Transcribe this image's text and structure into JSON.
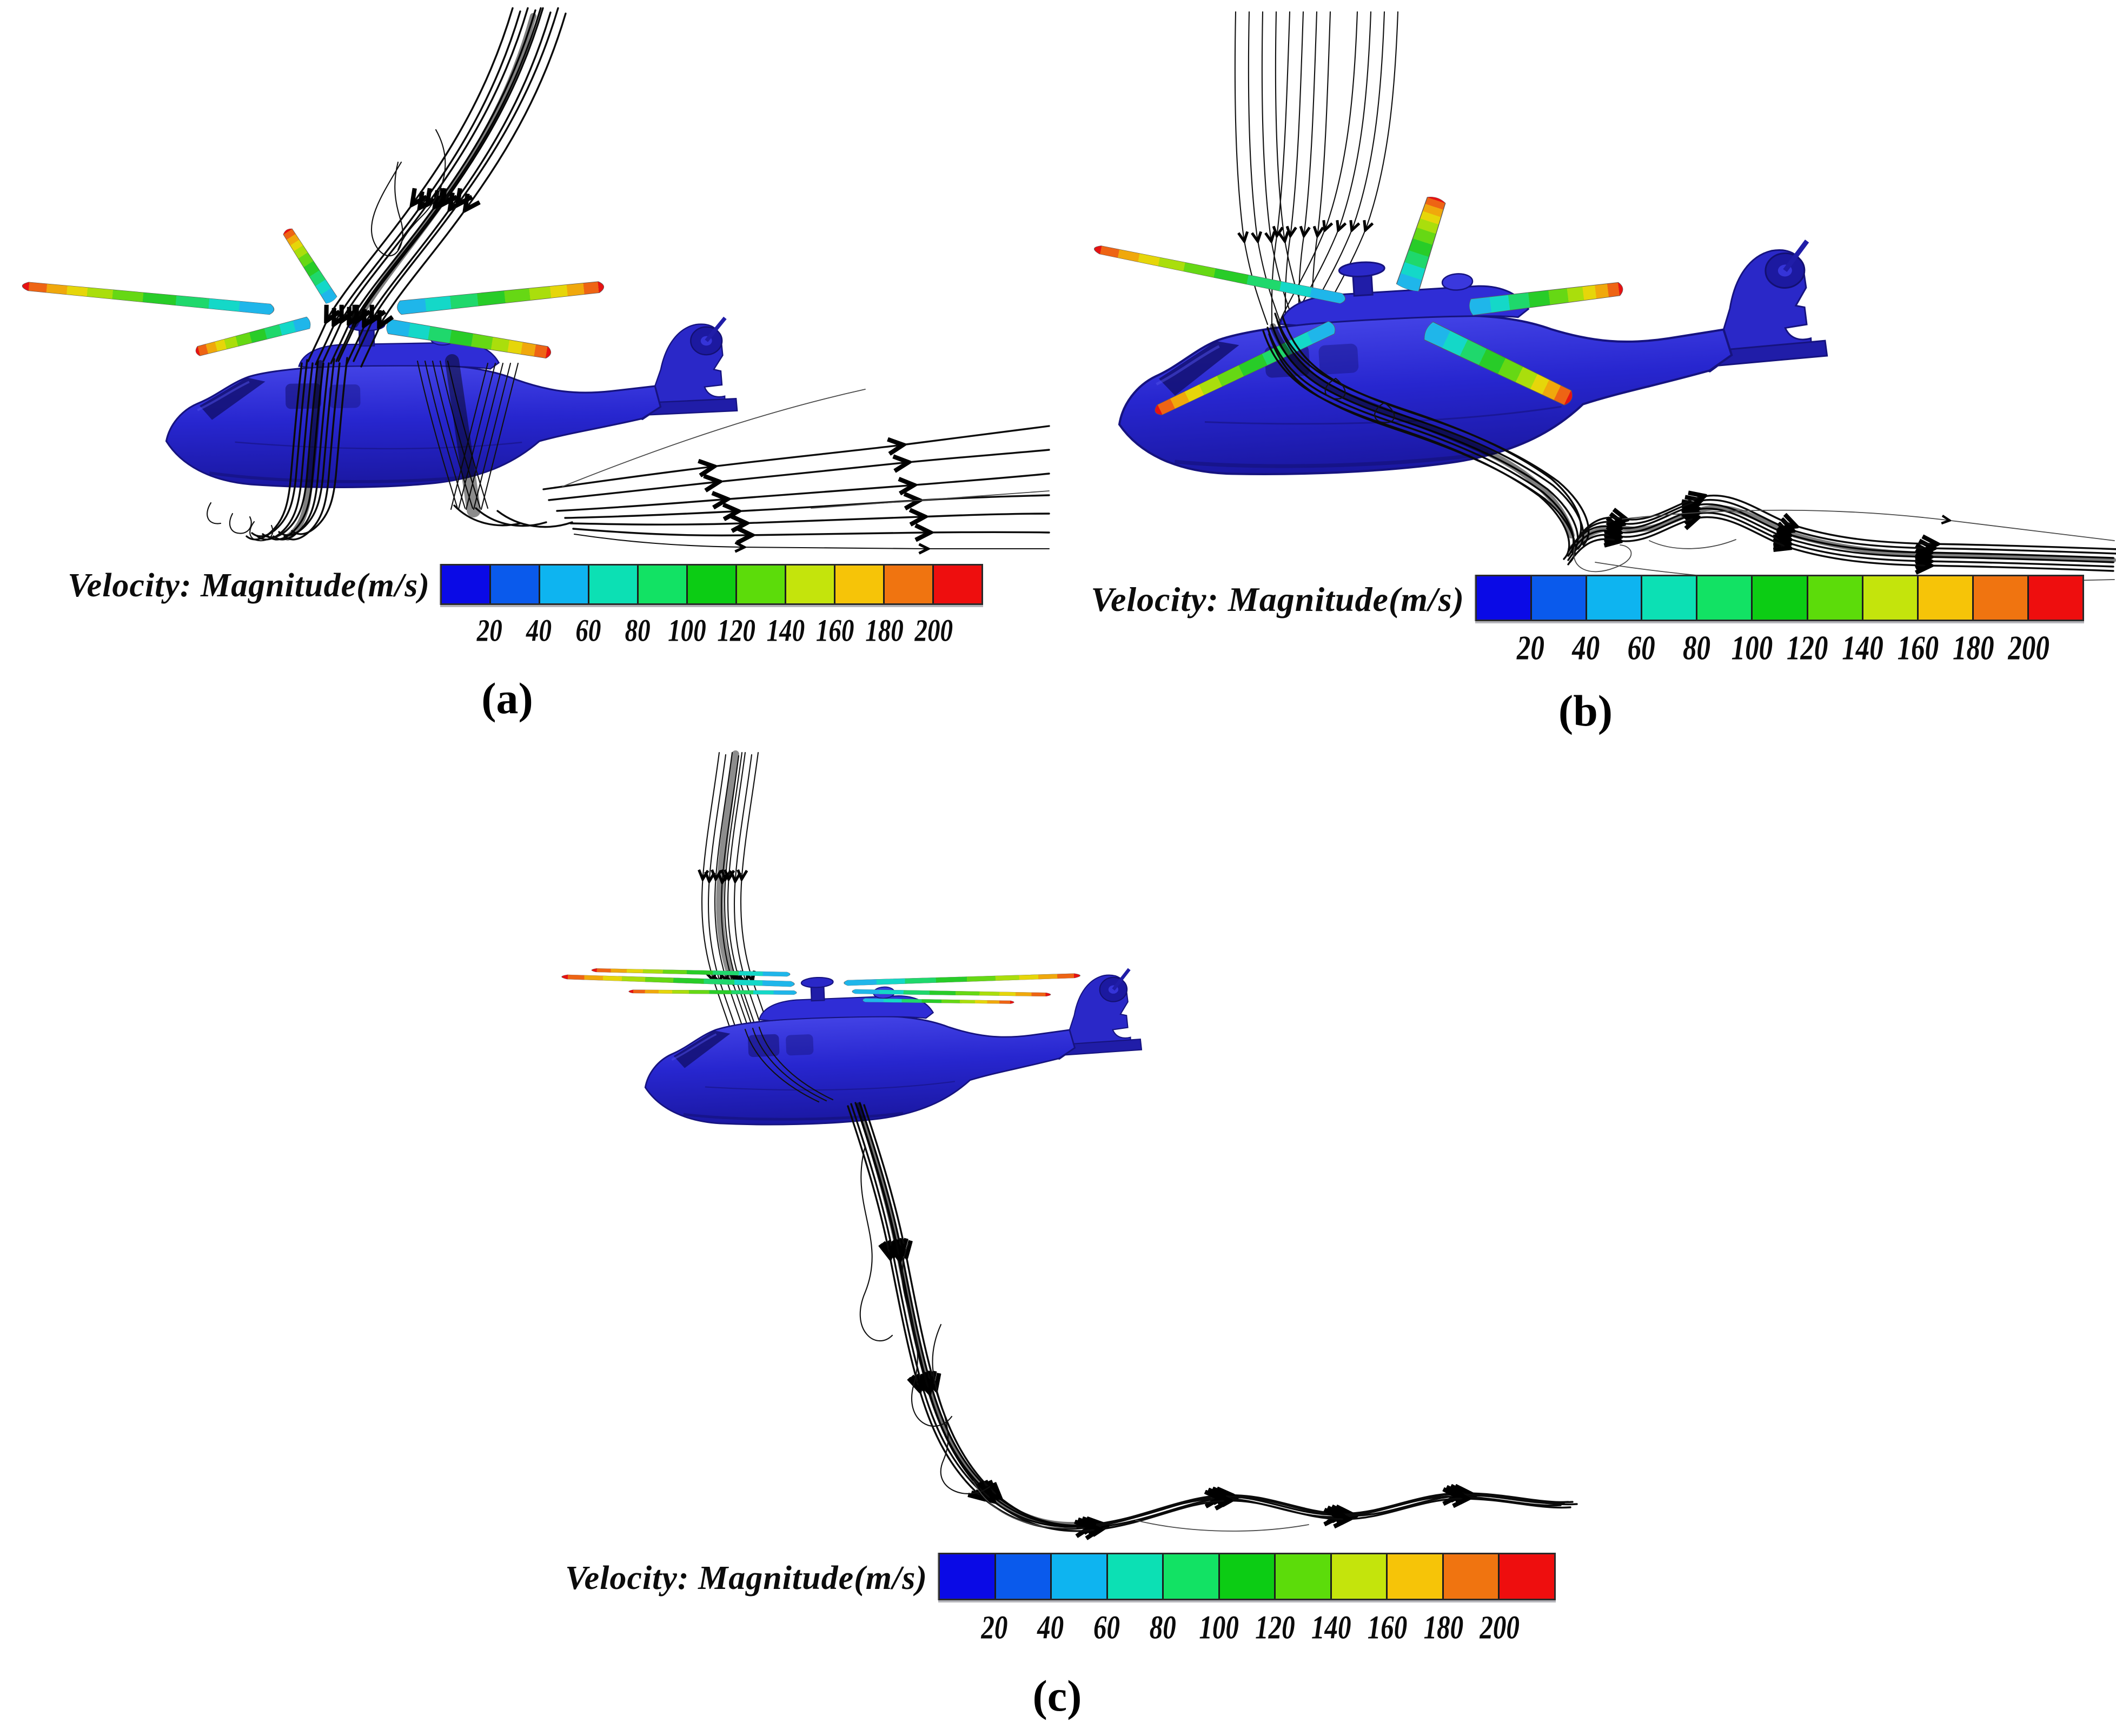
{
  "figure": {
    "caption_a": "(a)",
    "caption_b": "(b)",
    "caption_c": "(c)"
  },
  "colorbar": {
    "label": "Velocity: Magnitude(m/s)",
    "ticks": [
      "20",
      "40",
      "60",
      "80",
      "100",
      "120",
      "140",
      "160",
      "180",
      "200"
    ],
    "colors": [
      "#0a0ae6",
      "#0a5aec",
      "#0eb4f0",
      "#0ce0b4",
      "#12e264",
      "#0ccc14",
      "#5cdc0a",
      "#c4e40c",
      "#f6c408",
      "#f07410",
      "#ee0e0e"
    ]
  },
  "scene": {
    "helicopter_color": "#2726cf",
    "streamline_color": "#0b0b0b",
    "panel_a": "rotor-downwash-and-trailing-wake",
    "panel_b": "curtain-inflow-and-rear-wake",
    "panel_c": "vertical-column-through-rotor"
  }
}
